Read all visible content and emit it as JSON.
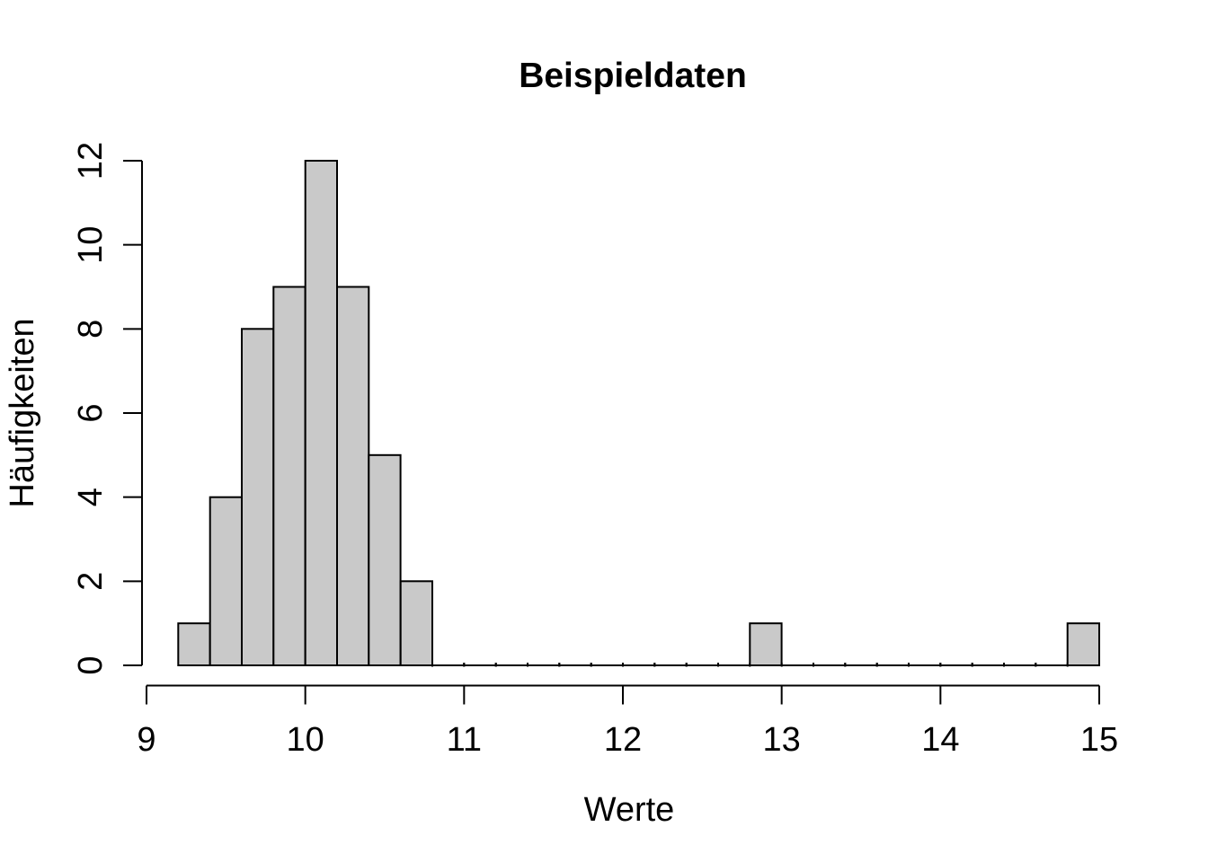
{
  "chart_data": {
    "type": "bar",
    "subtype": "histogram",
    "title": "Beispieldaten",
    "xlabel": "Werte",
    "ylabel": "Häufigkeiten",
    "bin_start": 9.2,
    "bin_width": 0.2,
    "bin_end": 15.0,
    "counts": [
      1,
      4,
      8,
      9,
      12,
      9,
      5,
      2,
      0,
      0,
      0,
      0,
      0,
      0,
      0,
      0,
      0,
      0,
      1,
      0,
      0,
      0,
      0,
      0,
      0,
      0,
      0,
      0,
      1
    ],
    "x_ticks": [
      9,
      10,
      11,
      12,
      13,
      14,
      15
    ],
    "y_ticks": [
      0,
      2,
      4,
      6,
      8,
      10,
      12
    ],
    "xlim": [
      9,
      15
    ],
    "ylim": [
      0,
      12
    ],
    "grid": false,
    "legend": null,
    "colors": {
      "bar_fill": "#c9c9c9",
      "bar_stroke": "#000000",
      "axis": "#000000",
      "text": "#000000",
      "background": "#ffffff"
    }
  }
}
